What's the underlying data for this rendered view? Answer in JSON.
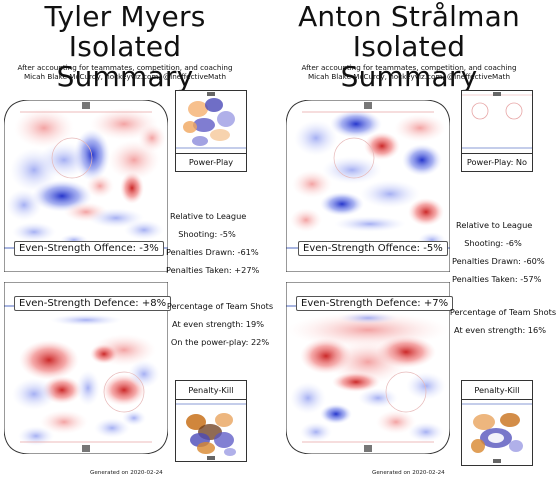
{
  "players": [
    {
      "title_line1": "Tyler Myers",
      "title_line2": "Isolated Summary",
      "subtitle_line1": "After accounting for teammates, competition, and coaching",
      "subtitle_line2": "Micah Blake McCurdy, hockeyviz.com, @IneffectiveMath",
      "offence_label": "Even-Strength Offence: -3%",
      "defence_label": "Even-Strength Defence: +8%",
      "pp_label": "Power-Play",
      "pk_label": "Penalty-Kill",
      "relative_heading": "Relative to League",
      "shooting": "Shooting: -5%",
      "penalties_drawn": "Penalties Drawn: -61%",
      "penalties_taken": "Penalties Taken: +27%",
      "team_shots_heading": "Percentage of Team Shots",
      "at_even_strength": "At even strength: 19%",
      "on_power_play": "On the power-play: 22%",
      "generated": "Generated on 2020-02-24"
    },
    {
      "title_line1": "Anton Strålman",
      "title_line2": "Isolated Summary",
      "subtitle_line1": "After accounting for teammates, competition, and coaching",
      "subtitle_line2": "Micah Blake McCurdy, hockeyviz.com, @IneffectiveMath",
      "offence_label": "Even-Strength Offence: -5%",
      "defence_label": "Even-Strength Defence: +7%",
      "pp_label": "Power-Play: No",
      "pk_label": "Penalty-Kill",
      "relative_heading": "Relative to League",
      "shooting": "Shooting: -6%",
      "penalties_drawn": "Penalties Drawn: -60%",
      "penalties_taken": "Penalties Taken: -57%",
      "team_shots_heading": "Percentage of Team Shots",
      "at_even_strength": "At even strength: 16%",
      "generated": "Generated on 2020-02-24"
    }
  ],
  "chart_data": [
    {
      "type": "heatmap",
      "title": "Tyler Myers Isolated Summary",
      "panels": [
        {
          "name": "Even-Strength Offence",
          "value_pct": -3
        },
        {
          "name": "Even-Strength Defence",
          "value_pct": 8
        },
        {
          "name": "Power-Play"
        },
        {
          "name": "Penalty-Kill"
        }
      ],
      "relative_to_league": {
        "shooting_pct": -5,
        "penalties_drawn_pct": -61,
        "penalties_taken_pct": 27
      },
      "percentage_of_team_shots": {
        "even_strength_pct": 19,
        "power_play_pct": 22
      },
      "colors": {
        "more_than_league": "#d73027",
        "less_than_league": "#3a4fd8",
        "pk_more": "#c8711a",
        "pk_less": "#4b4ab8"
      }
    },
    {
      "type": "heatmap",
      "title": "Anton Strålman Isolated Summary",
      "panels": [
        {
          "name": "Even-Strength Offence",
          "value_pct": -5
        },
        {
          "name": "Even-Strength Defence",
          "value_pct": 7
        },
        {
          "name": "Power-Play",
          "played": false
        },
        {
          "name": "Penalty-Kill"
        }
      ],
      "relative_to_league": {
        "shooting_pct": -6,
        "penalties_drawn_pct": -60,
        "penalties_taken_pct": -57
      },
      "percentage_of_team_shots": {
        "even_strength_pct": 16
      },
      "colors": {
        "more_than_league": "#d73027",
        "less_than_league": "#3a4fd8",
        "pk_more": "#c8711a",
        "pk_less": "#4b4ab8"
      }
    }
  ]
}
